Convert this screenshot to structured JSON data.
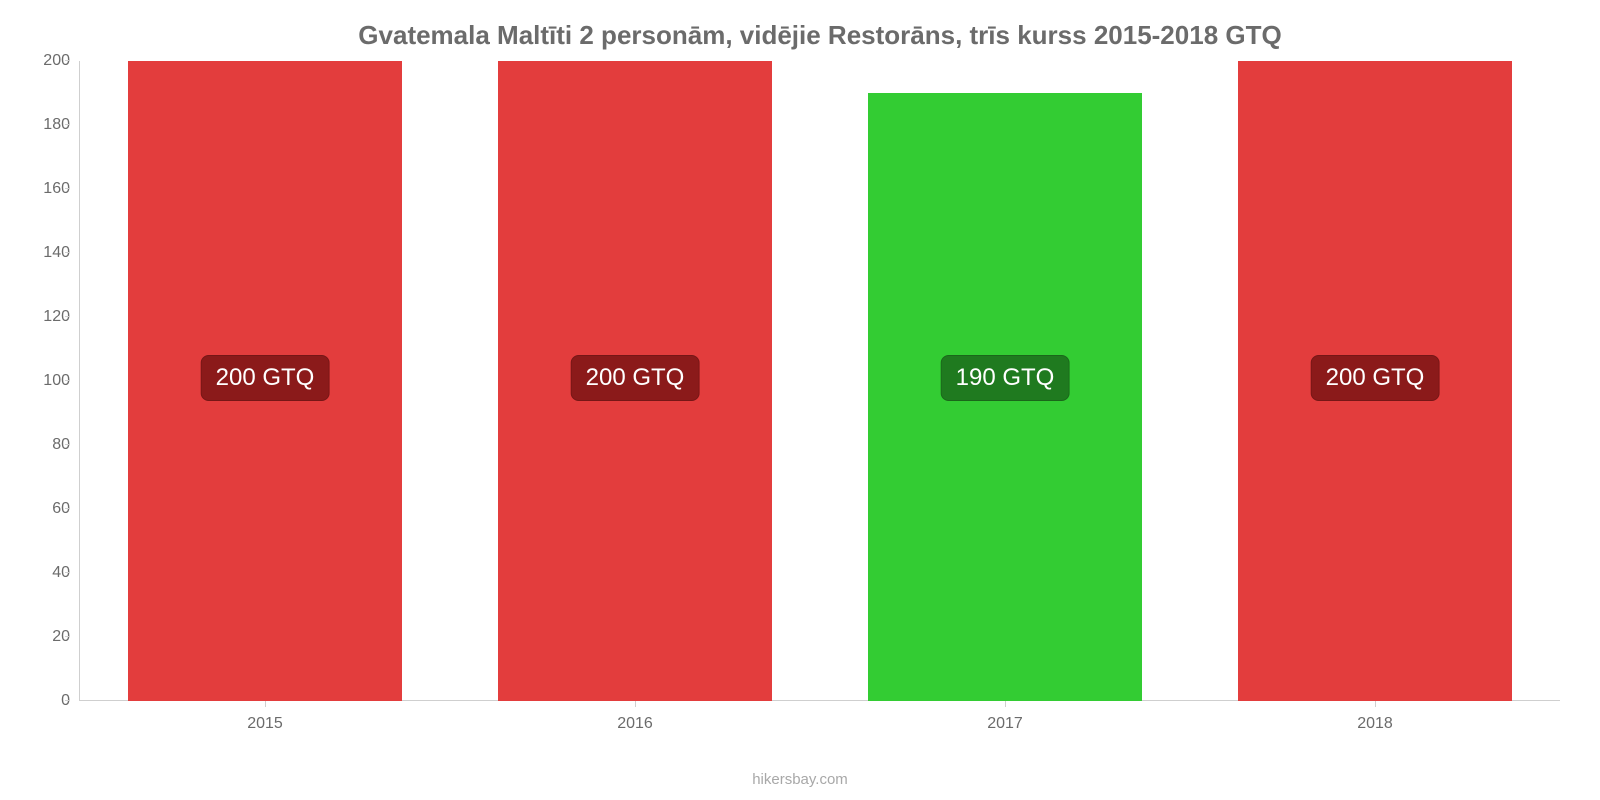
{
  "chart": {
    "type": "bar",
    "title": "Gvatemala Maltīti 2 personām, vidējie Restorāns, trīs kurss 2015-2018 GTQ",
    "title_fontsize": 26,
    "title_color": "#6b6b6b",
    "background_color": "#ffffff",
    "axis_color": "#cfcfcf",
    "tick_label_color": "#6b6b6b",
    "tick_label_fontsize": 16,
    "ylim": [
      0,
      200
    ],
    "ytick_step": 20,
    "yticks": [
      0,
      20,
      40,
      60,
      80,
      100,
      120,
      140,
      160,
      180,
      200
    ],
    "categories": [
      "2015",
      "2016",
      "2017",
      "2018"
    ],
    "values": [
      200,
      200,
      190,
      200
    ],
    "value_labels": [
      "200 GTQ",
      "200 GTQ",
      "190 GTQ",
      "200 GTQ"
    ],
    "bar_colors": [
      "#e33d3d",
      "#e33d3d",
      "#33cc33",
      "#e33d3d"
    ],
    "label_bg_colors": [
      "#8b1a1a",
      "#8b1a1a",
      "#1f7a1f",
      "#8b1a1a"
    ],
    "label_text_color": "#ffffff",
    "label_fontsize": 24,
    "bar_width": 0.74,
    "attribution": "hikersbay.com",
    "attribution_color": "#a8a8a8"
  }
}
